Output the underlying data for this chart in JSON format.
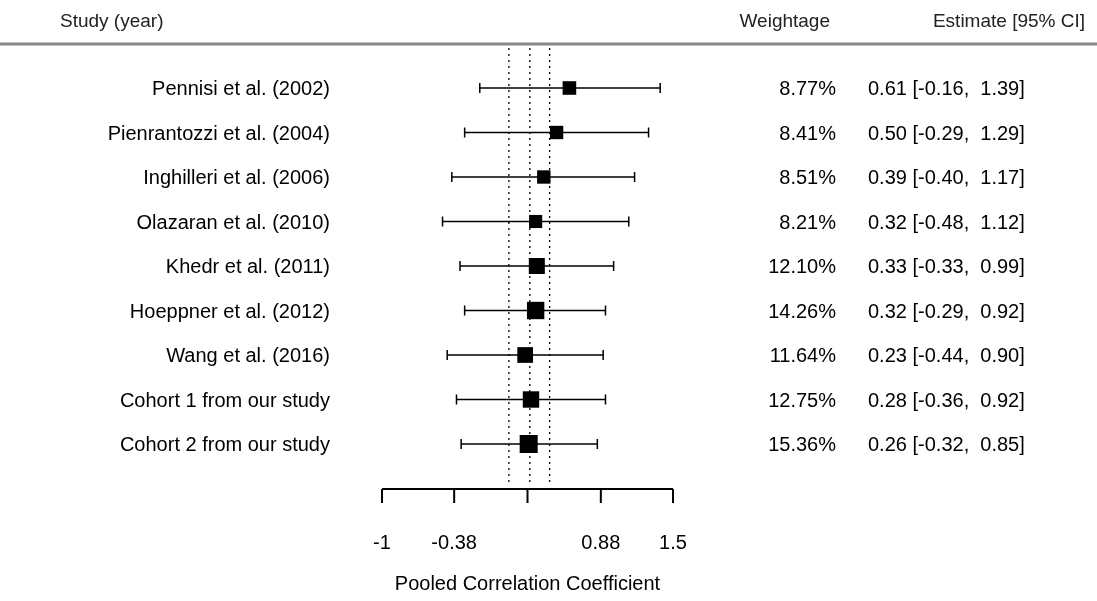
{
  "chart_data": {
    "type": "bubble",
    "orientation": "horizontal",
    "marker": "square",
    "xlabel": "Pooled Correlation Coefficient",
    "categories": [
      "Pennisi et al. (2002)",
      "Pienrantozzi et al. (2004)",
      "Inghilleri et al. (2006)",
      "Olazaran et al. (2010)",
      "Khedr et al. (2011)",
      "Hoeppner et al. (2012)",
      "Wang et al. (2016)",
      "Cohort 1 from our study",
      "Cohort 2 from our study"
    ],
    "values": [
      0.61,
      0.5,
      0.39,
      0.32,
      0.33,
      0.32,
      0.23,
      0.28,
      0.26
    ],
    "errors": [
      [
        -0.16,
        1.39
      ],
      [
        -0.29,
        1.29
      ],
      [
        -0.4,
        1.17
      ],
      [
        -0.48,
        1.12
      ],
      [
        -0.33,
        0.99
      ],
      [
        -0.29,
        0.92
      ],
      [
        -0.44,
        0.9
      ],
      [
        -0.36,
        0.92
      ],
      [
        -0.32,
        0.85
      ]
    ],
    "sizes": [
      0.57,
      0.55,
      0.55,
      0.53,
      0.79,
      0.93,
      0.76,
      0.83,
      1
    ],
    "value_labels": [
      "0.61 [-0.16,  1.39]",
      "0.50 [-0.29,  1.29]",
      "0.39 [-0.40,  1.17]",
      "0.32 [-0.48,  1.12]",
      "0.33 [-0.33,  0.99]",
      "0.32 [-0.29,  0.92]",
      "0.23 [-0.44,  0.90]",
      "0.28 [-0.36,  0.92]",
      "0.26 [-0.32,  0.85]"
    ],
    "color": "#000000",
    "xlim": [
      -1,
      1.5
    ],
    "xticks": [
      -1,
      -0.38,
      {
        "value": 0.25,
        "label": null
      },
      0.88,
      1.5
    ],
    "ref_lines": [
      {
        "axis": "x",
        "value": 0.09,
        "line_style": "dotted"
      },
      {
        "axis": "x",
        "value": 0.27,
        "line_style": "dotted"
      },
      {
        "axis": "x",
        "value": 0.44,
        "line_style": "dotted"
      }
    ],
    "annotations": [
      "Study (year)",
      "Weightage",
      "Estimate [95% CI]",
      "8.77%",
      "8.41%",
      "8.51%",
      "8.21%",
      "12.10%",
      "14.26%",
      "11.64%",
      "12.75%",
      "15.36%"
    ]
  }
}
